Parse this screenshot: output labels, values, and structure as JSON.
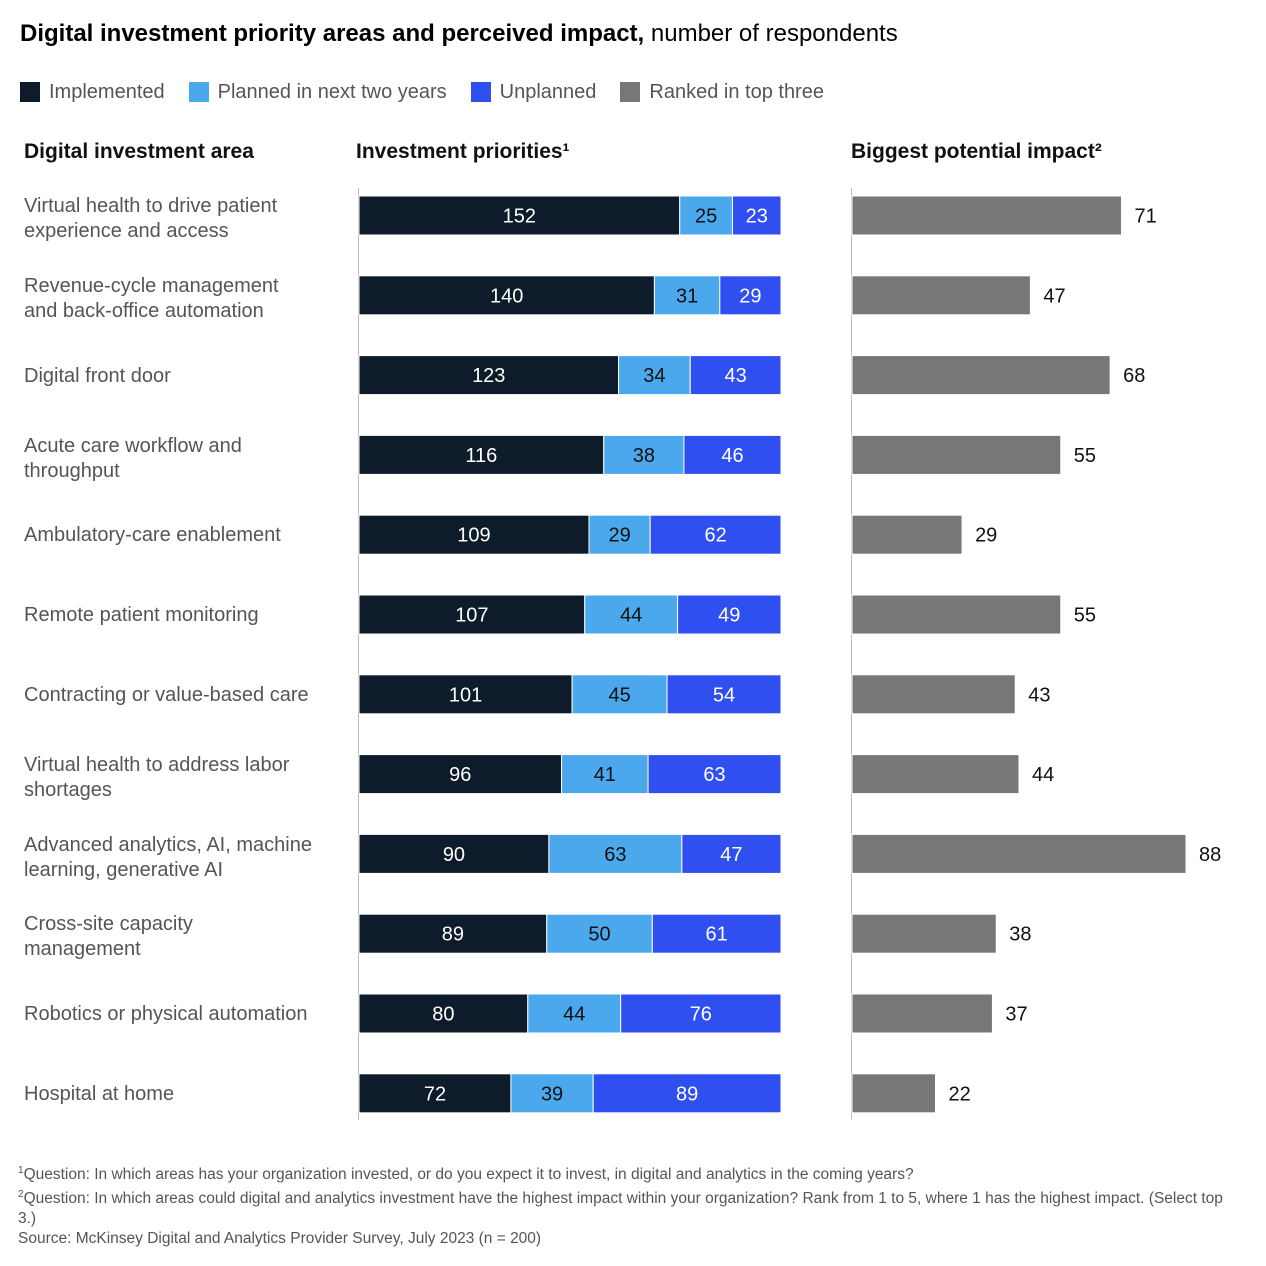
{
  "title": {
    "bold": "Digital investment priority areas and perceived impact,",
    "rest": " number of respondents"
  },
  "legend": [
    {
      "label": "Implemented",
      "color": "#0d1b2a"
    },
    {
      "label": "Planned in next two years",
      "color": "#4ca8ec"
    },
    {
      "label": "Unplanned",
      "color": "#2f4ff0"
    },
    {
      "label": "Ranked in top three",
      "color": "#777777"
    }
  ],
  "headers": {
    "area": "Digital investment area",
    "priorities": "Investment priorities¹",
    "impact": "Biggest potential impact²"
  },
  "chart_data": [
    {
      "type": "bar",
      "orientation": "horizontal",
      "stacked": true,
      "title": "Investment priorities¹",
      "categories": [
        "Virtual health to drive patient experience and access",
        "Revenue-cycle management and back-office automation",
        "Digital front door",
        "Acute care workflow and throughput",
        "Ambulatory-care enablement",
        "Remote patient monitoring",
        "Contracting or value-based care",
        "Virtual health to address labor shortages",
        "Advanced analytics, AI, machine learning, generative AI",
        "Cross-site capacity management",
        "Robotics or physical automation",
        "Hospital at home"
      ],
      "series": [
        {
          "name": "Implemented",
          "color": "#0d1b2a",
          "label_color": "#ffffff",
          "values": [
            152,
            140,
            123,
            116,
            109,
            107,
            101,
            96,
            90,
            89,
            80,
            72
          ]
        },
        {
          "name": "Planned in next two years",
          "color": "#4ca8ec",
          "label_color": "#111111",
          "values": [
            25,
            31,
            34,
            38,
            29,
            44,
            45,
            41,
            63,
            50,
            44,
            39
          ]
        },
        {
          "name": "Unplanned",
          "color": "#2f4ff0",
          "label_color": "#ffffff",
          "values": [
            23,
            29,
            43,
            46,
            62,
            49,
            54,
            63,
            47,
            61,
            76,
            89
          ]
        }
      ],
      "xlim": [
        0,
        200
      ]
    },
    {
      "type": "bar",
      "orientation": "horizontal",
      "title": "Biggest potential impact²",
      "categories": [
        "Virtual health to drive patient experience and access",
        "Revenue-cycle management and back-office automation",
        "Digital front door",
        "Acute care workflow and throughput",
        "Ambulatory-care enablement",
        "Remote patient monitoring",
        "Contracting or value-based care",
        "Virtual health to address labor shortages",
        "Advanced analytics, AI, machine learning, generative AI",
        "Cross-site capacity management",
        "Robotics or physical automation",
        "Hospital at home"
      ],
      "series": [
        {
          "name": "Ranked in top three",
          "color": "#777777",
          "values": [
            71,
            47,
            68,
            55,
            29,
            55,
            43,
            44,
            88,
            38,
            37,
            22
          ]
        }
      ],
      "xlim": [
        0,
        88
      ]
    }
  ],
  "row_labels": [
    {
      "lines": [
        "Virtual health to drive patient",
        "experience and access"
      ]
    },
    {
      "lines": [
        "Revenue-cycle management",
        "and back-office automation"
      ]
    },
    {
      "lines": [
        "Digital front door"
      ]
    },
    {
      "lines": [
        "Acute care workflow and",
        "throughput"
      ]
    },
    {
      "lines": [
        "Ambulatory-care enablement"
      ]
    },
    {
      "lines": [
        "Remote patient monitoring"
      ]
    },
    {
      "lines": [
        "Contracting or value-based care"
      ]
    },
    {
      "lines": [
        "Virtual health to address labor",
        "shortages"
      ]
    },
    {
      "lines": [
        "Advanced analytics, AI, machine",
        "learning, generative AI"
      ]
    },
    {
      "lines": [
        "Cross-site capacity",
        "management"
      ]
    },
    {
      "lines": [
        "Robotics or physical automation"
      ]
    },
    {
      "lines": [
        "Hospital at home"
      ]
    }
  ],
  "footnotes": {
    "note1": {
      "mark": "1",
      "text": "Question: In which areas has your organization invested, or do you expect it to invest, in digital and analytics in the coming years?"
    },
    "note2": {
      "mark": "2",
      "text": "Question: In which areas could digital and analytics investment have the highest impact within your organization? Rank from 1 to 5, where 1 has the highest impact. (Select top 3.)"
    },
    "source": "Source: McKinsey Digital and Analytics Provider Survey, July 2023 (n = 200)"
  }
}
